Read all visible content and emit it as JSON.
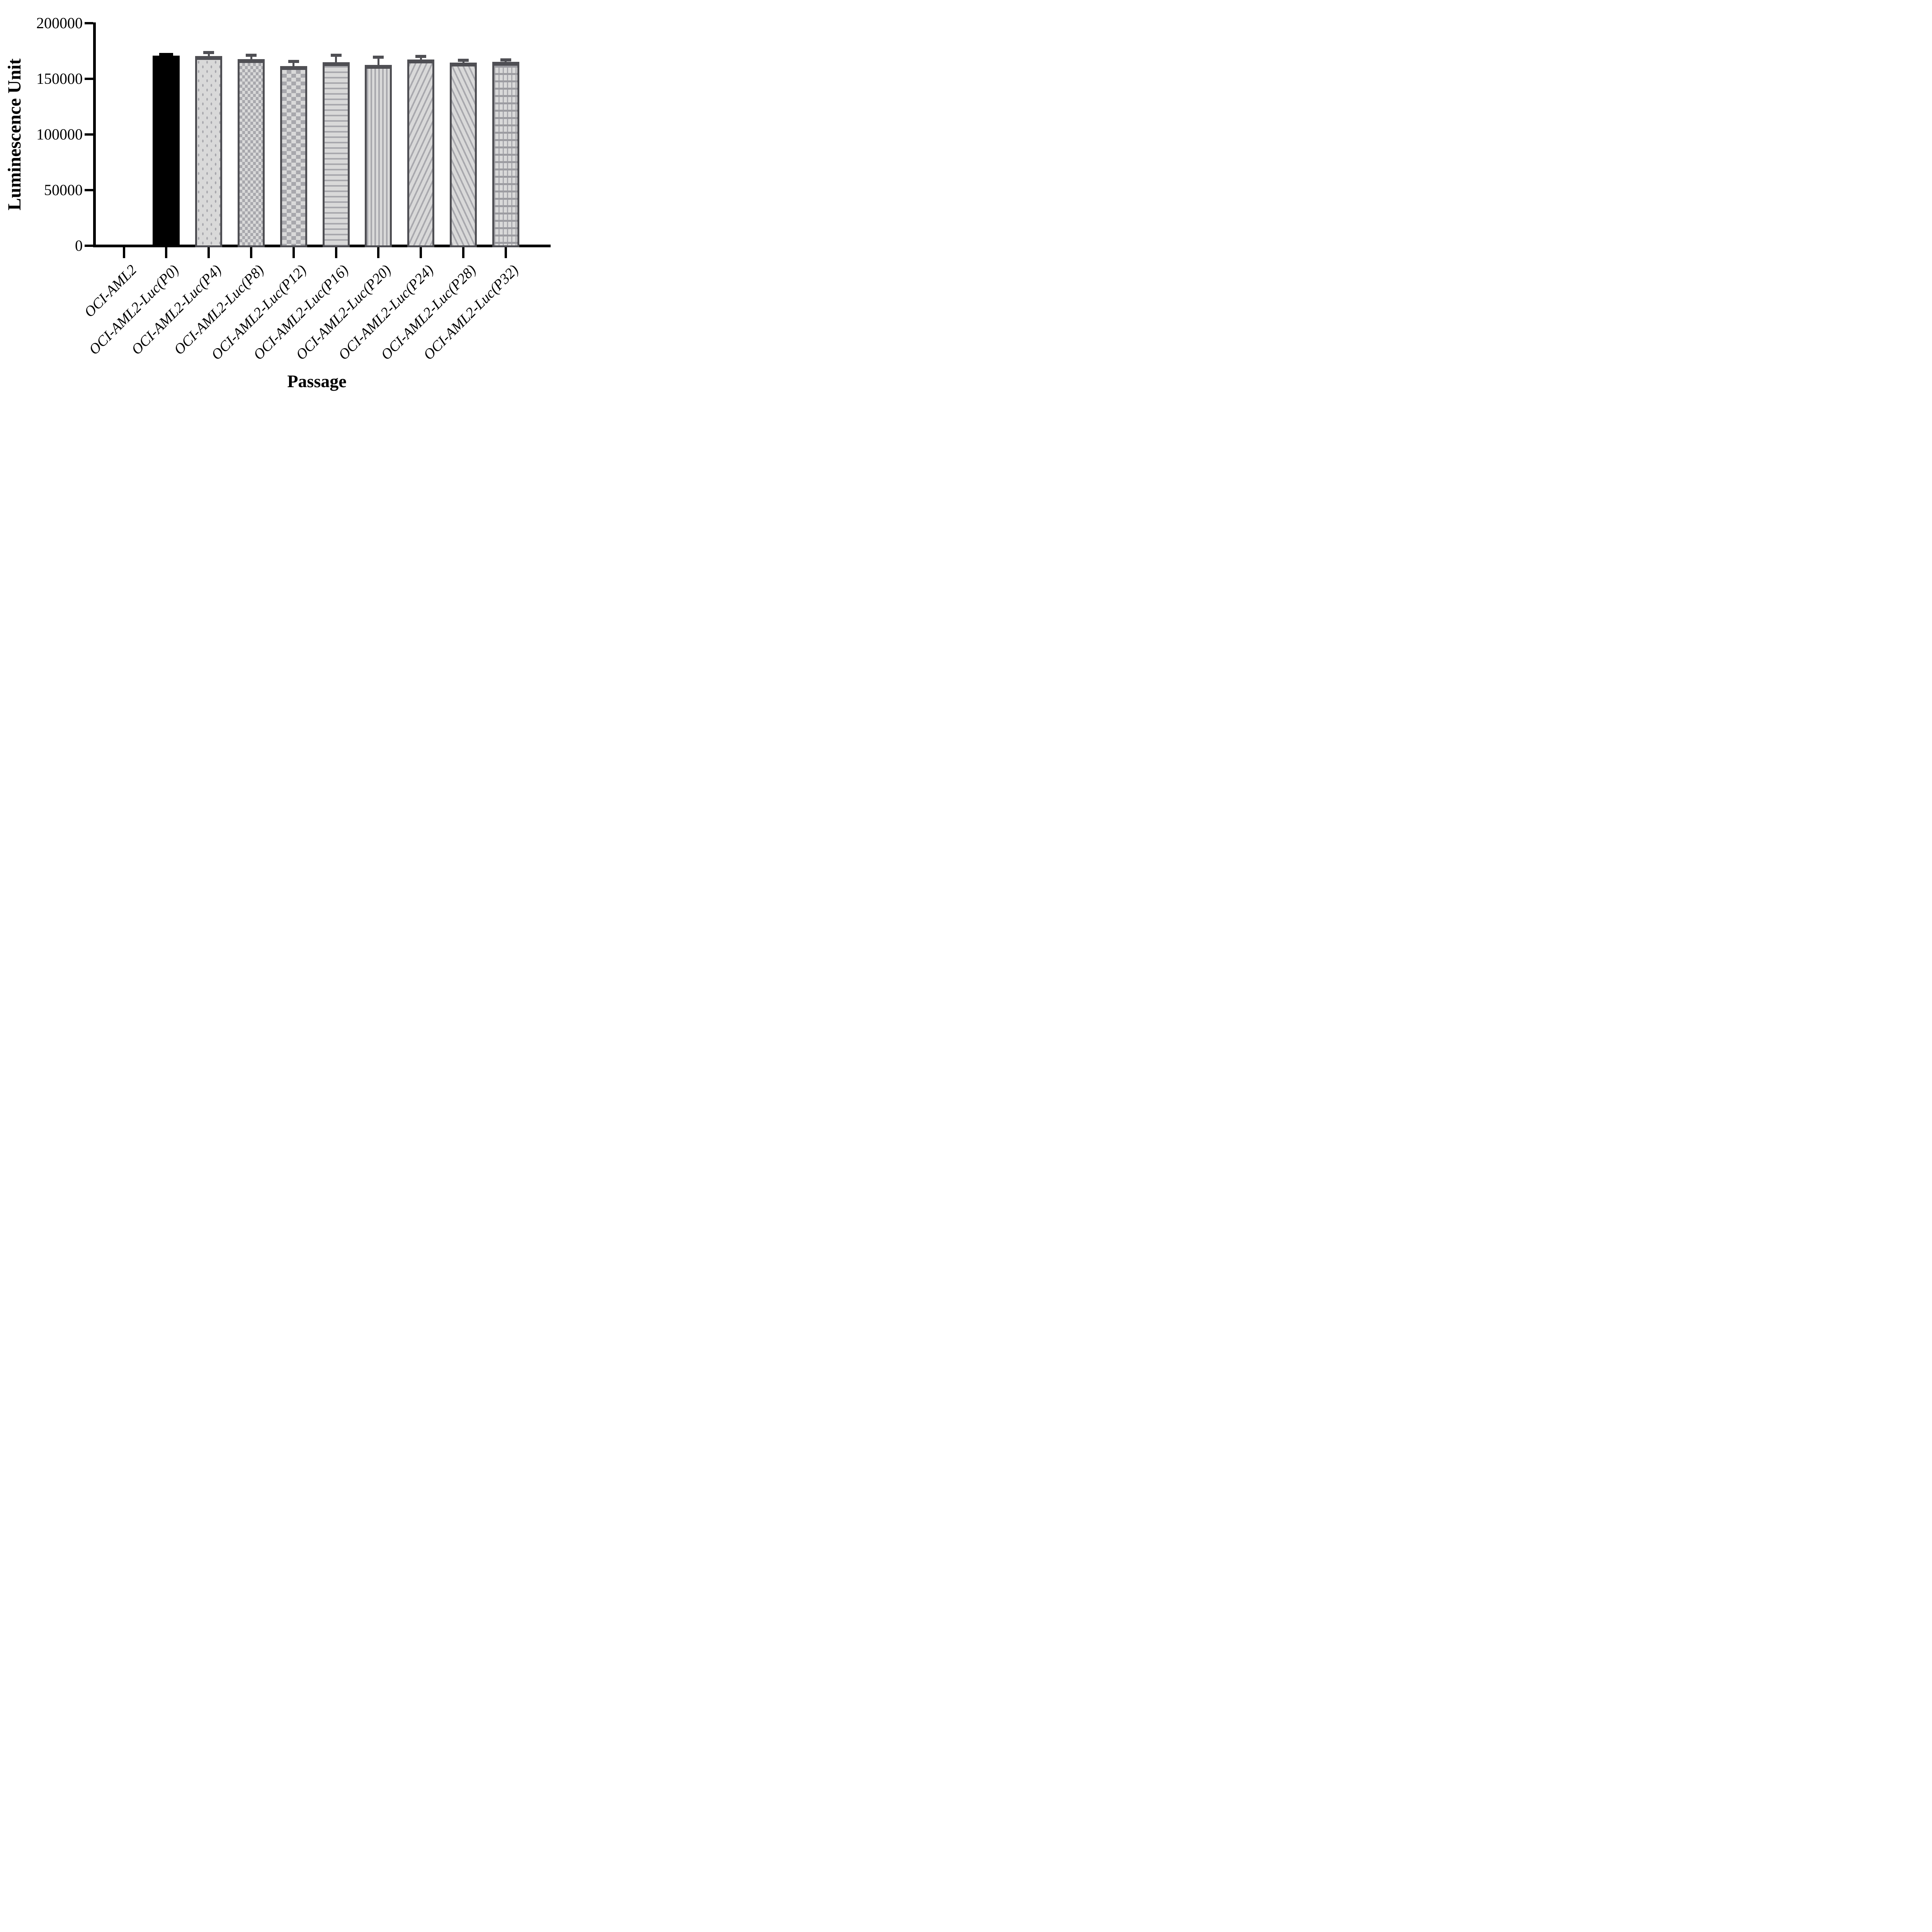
{
  "chart_data": {
    "type": "bar",
    "title": "",
    "xlabel": "Passage",
    "ylabel": "Luminescence Unit",
    "ylim": [
      0,
      200000
    ],
    "yticks": [
      0,
      50000,
      100000,
      150000,
      200000
    ],
    "grid": false,
    "legend": "none",
    "categories": [
      "OCI-AML2",
      "OCI-AML2-Luc(P0)",
      "OCI-AML2-Luc(P4)",
      "OCI-AML2-Luc(P8)",
      "OCI-AML2-Luc(P12)",
      "OCI-AML2-Luc(P16)",
      "OCI-AML2-Luc(P20)",
      "OCI-AML2-Luc(P24)",
      "OCI-AML2-Luc(P28)",
      "OCI-AML2-Luc(P32)"
    ],
    "values": [
      0,
      171000,
      170600,
      167600,
      161400,
      165000,
      162400,
      167300,
      164700,
      165400
    ],
    "errors": [
      0,
      900,
      3100,
      3600,
      4100,
      6300,
      6900,
      2700,
      1800,
      1550
    ],
    "bar_styles": [
      "none",
      "solid-black",
      "dots",
      "checker-small",
      "checker-large",
      "horizontal-lines",
      "vertical-lines",
      "diagonal-up",
      "diagonal-down",
      "grid"
    ],
    "colors": {
      "axis": "#000000",
      "black_bar": "#000000",
      "bar_fill": "#d9d9d9",
      "pattern_mark": "#a8a8ad",
      "bar_border": "#4f4f54",
      "error_bar": "#4f4f54"
    }
  }
}
